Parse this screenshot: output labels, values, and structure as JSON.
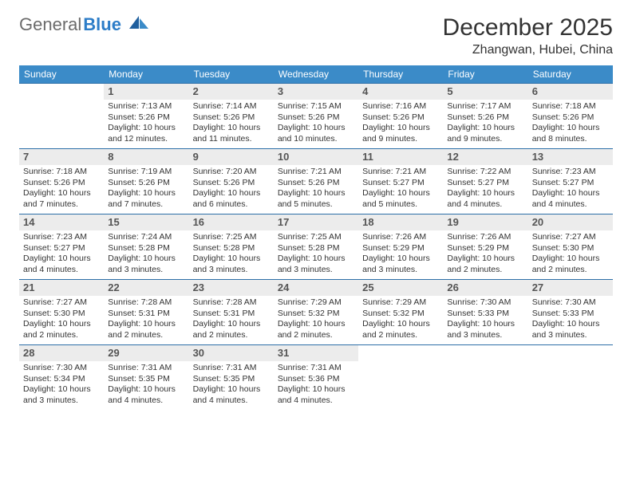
{
  "brand": {
    "part1": "General",
    "part2": "Blue"
  },
  "title": "December 2025",
  "location": "Zhangwan, Hubei, China",
  "colors": {
    "header_bg": "#3b8bc8",
    "header_text": "#ffffff",
    "daynum_bg": "#ececec",
    "week_border": "#2d6fa8",
    "logo_gray": "#6b6b6b",
    "logo_blue": "#2d7dc8"
  },
  "daysOfWeek": [
    "Sunday",
    "Monday",
    "Tuesday",
    "Wednesday",
    "Thursday",
    "Friday",
    "Saturday"
  ],
  "weeks": [
    [
      {
        "n": "",
        "sr": "",
        "ss": "",
        "dl": ""
      },
      {
        "n": "1",
        "sr": "Sunrise: 7:13 AM",
        "ss": "Sunset: 5:26 PM",
        "dl": "Daylight: 10 hours and 12 minutes."
      },
      {
        "n": "2",
        "sr": "Sunrise: 7:14 AM",
        "ss": "Sunset: 5:26 PM",
        "dl": "Daylight: 10 hours and 11 minutes."
      },
      {
        "n": "3",
        "sr": "Sunrise: 7:15 AM",
        "ss": "Sunset: 5:26 PM",
        "dl": "Daylight: 10 hours and 10 minutes."
      },
      {
        "n": "4",
        "sr": "Sunrise: 7:16 AM",
        "ss": "Sunset: 5:26 PM",
        "dl": "Daylight: 10 hours and 9 minutes."
      },
      {
        "n": "5",
        "sr": "Sunrise: 7:17 AM",
        "ss": "Sunset: 5:26 PM",
        "dl": "Daylight: 10 hours and 9 minutes."
      },
      {
        "n": "6",
        "sr": "Sunrise: 7:18 AM",
        "ss": "Sunset: 5:26 PM",
        "dl": "Daylight: 10 hours and 8 minutes."
      }
    ],
    [
      {
        "n": "7",
        "sr": "Sunrise: 7:18 AM",
        "ss": "Sunset: 5:26 PM",
        "dl": "Daylight: 10 hours and 7 minutes."
      },
      {
        "n": "8",
        "sr": "Sunrise: 7:19 AM",
        "ss": "Sunset: 5:26 PM",
        "dl": "Daylight: 10 hours and 7 minutes."
      },
      {
        "n": "9",
        "sr": "Sunrise: 7:20 AM",
        "ss": "Sunset: 5:26 PM",
        "dl": "Daylight: 10 hours and 6 minutes."
      },
      {
        "n": "10",
        "sr": "Sunrise: 7:21 AM",
        "ss": "Sunset: 5:26 PM",
        "dl": "Daylight: 10 hours and 5 minutes."
      },
      {
        "n": "11",
        "sr": "Sunrise: 7:21 AM",
        "ss": "Sunset: 5:27 PM",
        "dl": "Daylight: 10 hours and 5 minutes."
      },
      {
        "n": "12",
        "sr": "Sunrise: 7:22 AM",
        "ss": "Sunset: 5:27 PM",
        "dl": "Daylight: 10 hours and 4 minutes."
      },
      {
        "n": "13",
        "sr": "Sunrise: 7:23 AM",
        "ss": "Sunset: 5:27 PM",
        "dl": "Daylight: 10 hours and 4 minutes."
      }
    ],
    [
      {
        "n": "14",
        "sr": "Sunrise: 7:23 AM",
        "ss": "Sunset: 5:27 PM",
        "dl": "Daylight: 10 hours and 4 minutes."
      },
      {
        "n": "15",
        "sr": "Sunrise: 7:24 AM",
        "ss": "Sunset: 5:28 PM",
        "dl": "Daylight: 10 hours and 3 minutes."
      },
      {
        "n": "16",
        "sr": "Sunrise: 7:25 AM",
        "ss": "Sunset: 5:28 PM",
        "dl": "Daylight: 10 hours and 3 minutes."
      },
      {
        "n": "17",
        "sr": "Sunrise: 7:25 AM",
        "ss": "Sunset: 5:28 PM",
        "dl": "Daylight: 10 hours and 3 minutes."
      },
      {
        "n": "18",
        "sr": "Sunrise: 7:26 AM",
        "ss": "Sunset: 5:29 PM",
        "dl": "Daylight: 10 hours and 3 minutes."
      },
      {
        "n": "19",
        "sr": "Sunrise: 7:26 AM",
        "ss": "Sunset: 5:29 PM",
        "dl": "Daylight: 10 hours and 2 minutes."
      },
      {
        "n": "20",
        "sr": "Sunrise: 7:27 AM",
        "ss": "Sunset: 5:30 PM",
        "dl": "Daylight: 10 hours and 2 minutes."
      }
    ],
    [
      {
        "n": "21",
        "sr": "Sunrise: 7:27 AM",
        "ss": "Sunset: 5:30 PM",
        "dl": "Daylight: 10 hours and 2 minutes."
      },
      {
        "n": "22",
        "sr": "Sunrise: 7:28 AM",
        "ss": "Sunset: 5:31 PM",
        "dl": "Daylight: 10 hours and 2 minutes."
      },
      {
        "n": "23",
        "sr": "Sunrise: 7:28 AM",
        "ss": "Sunset: 5:31 PM",
        "dl": "Daylight: 10 hours and 2 minutes."
      },
      {
        "n": "24",
        "sr": "Sunrise: 7:29 AM",
        "ss": "Sunset: 5:32 PM",
        "dl": "Daylight: 10 hours and 2 minutes."
      },
      {
        "n": "25",
        "sr": "Sunrise: 7:29 AM",
        "ss": "Sunset: 5:32 PM",
        "dl": "Daylight: 10 hours and 2 minutes."
      },
      {
        "n": "26",
        "sr": "Sunrise: 7:30 AM",
        "ss": "Sunset: 5:33 PM",
        "dl": "Daylight: 10 hours and 3 minutes."
      },
      {
        "n": "27",
        "sr": "Sunrise: 7:30 AM",
        "ss": "Sunset: 5:33 PM",
        "dl": "Daylight: 10 hours and 3 minutes."
      }
    ],
    [
      {
        "n": "28",
        "sr": "Sunrise: 7:30 AM",
        "ss": "Sunset: 5:34 PM",
        "dl": "Daylight: 10 hours and 3 minutes."
      },
      {
        "n": "29",
        "sr": "Sunrise: 7:31 AM",
        "ss": "Sunset: 5:35 PM",
        "dl": "Daylight: 10 hours and 4 minutes."
      },
      {
        "n": "30",
        "sr": "Sunrise: 7:31 AM",
        "ss": "Sunset: 5:35 PM",
        "dl": "Daylight: 10 hours and 4 minutes."
      },
      {
        "n": "31",
        "sr": "Sunrise: 7:31 AM",
        "ss": "Sunset: 5:36 PM",
        "dl": "Daylight: 10 hours and 4 minutes."
      },
      {
        "n": "",
        "sr": "",
        "ss": "",
        "dl": ""
      },
      {
        "n": "",
        "sr": "",
        "ss": "",
        "dl": ""
      },
      {
        "n": "",
        "sr": "",
        "ss": "",
        "dl": ""
      }
    ]
  ]
}
